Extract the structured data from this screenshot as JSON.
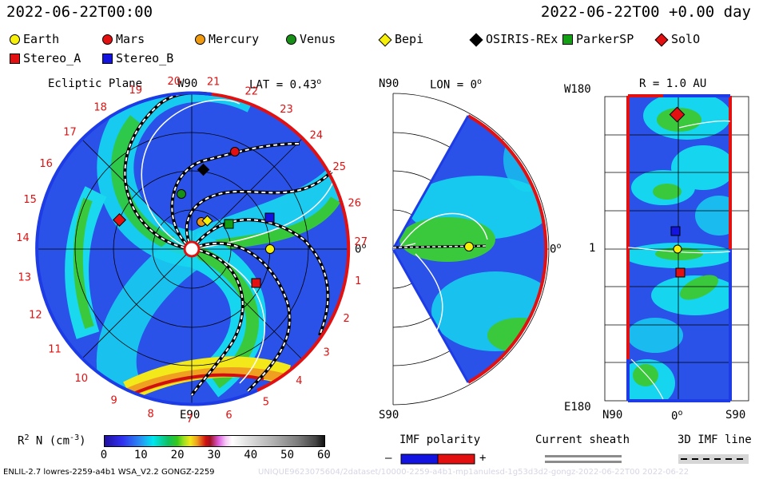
{
  "header": {
    "date_left": "2022-06-22T00:00",
    "date_right": "2022-06-22T00 +0.00 day"
  },
  "legend": [
    {
      "name": "Earth",
      "shape": "circle",
      "color": "#f6f00a"
    },
    {
      "name": "Mars",
      "shape": "circle",
      "color": "#e21010"
    },
    {
      "name": "Mercury",
      "shape": "circle",
      "color": "#f09a10"
    },
    {
      "name": "Venus",
      "shape": "circle",
      "color": "#189018"
    },
    {
      "name": "Bepi",
      "shape": "diamond",
      "color": "#f6f00a"
    },
    {
      "name": "OSIRIS-REx",
      "shape": "diamond",
      "color": "#000000"
    },
    {
      "name": "ParkerSP",
      "shape": "square",
      "color": "#14a014"
    },
    {
      "name": "SolO",
      "shape": "diamond",
      "color": "#e21010"
    },
    {
      "name": "Stereo_A",
      "shape": "square",
      "color": "#e21010"
    },
    {
      "name": "Stereo_B",
      "shape": "square",
      "color": "#1414e0"
    }
  ],
  "panels": {
    "ecliptic": {
      "title": "Ecliptic Plane",
      "top_label": "W90",
      "lat_label": "LAT = 0.43",
      "right_label": "0",
      "bottom_label": "E90",
      "degree_sup": "o",
      "ticks": [
        "20",
        "21",
        "22",
        "23",
        "24",
        "25",
        "26",
        "27",
        "1",
        "2",
        "3",
        "4",
        "5",
        "6",
        "7",
        "8",
        "9",
        "10",
        "11",
        "12",
        "13",
        "14",
        "15",
        "16",
        "17",
        "18",
        "19"
      ]
    },
    "meridional": {
      "top_label": "N90",
      "lon_label": "LON = 0",
      "right_label": "0",
      "bottom_label": "S90",
      "degree_sup": "o"
    },
    "radial": {
      "top_label": "R = 1.0 AU",
      "left_top": "W180",
      "left_mid": "1",
      "left_bottom": "E180",
      "bottom_left": "N90",
      "bottom_mid": "0",
      "bottom_right": "S90",
      "degree_sup": "o"
    }
  },
  "colorbar": {
    "label": "R",
    "label_sup": "2",
    "label_rest": " N (cm",
    "label_sup2": "-3",
    "label_end": ")",
    "ticks": [
      "0",
      "10",
      "20",
      "30",
      "40",
      "50",
      "60"
    ]
  },
  "imf_polarity": {
    "title": "IMF polarity",
    "minus": "–",
    "plus": "+"
  },
  "current_sheath": {
    "title": "Current sheath"
  },
  "imf_line": {
    "title": "3D IMF line"
  },
  "footer": {
    "left": "ENLIL-2.7 lowres-2259-a4b1 WSA_V2.2 GONGZ-2259",
    "right": "UNIQUE9623075604/2dataset/10000-2259-a4b1-mp1anulesd-1g53d3d2-gongz-2022-06-22T00  2022-06-22"
  }
}
